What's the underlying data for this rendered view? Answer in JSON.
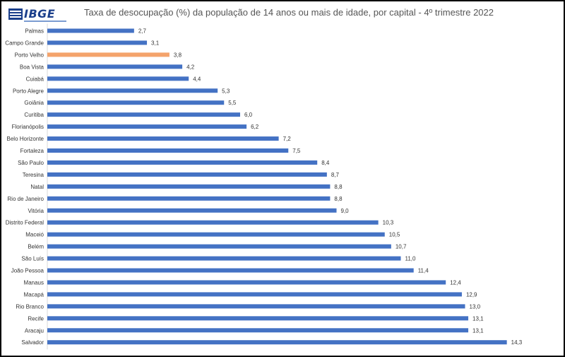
{
  "header": {
    "logo_text": "IBGE",
    "title": "Taxa de desocupação (%) da população de 14 anos ou mais de idade, por capital - 4º trimestre 2022"
  },
  "colors": {
    "bar": "#4472c4",
    "highlight": "#f4a36b"
  },
  "chart_data": {
    "type": "bar",
    "orientation": "horizontal",
    "title": "Taxa de desocupação (%) da população de 14 anos ou mais de idade, por capital - 4º trimestre 2022",
    "xlabel": "",
    "ylabel": "",
    "highlighted": "Porto Velho",
    "categories": [
      "Palmas",
      "Campo Grande",
      "Porto Velho",
      "Boa Vista",
      "Cuiabá",
      "Porto Alegre",
      "Goiânia",
      "Curitiba",
      "Florianópolis",
      "Belo Horizonte",
      "Fortaleza",
      "São Paulo",
      "Teresina",
      "Natal",
      "Rio de Janeiro",
      "Vitória",
      "Distrito Federal",
      "Maceió",
      "Belém",
      "São Luís",
      "João Pessoa",
      "Manaus",
      "Macapá",
      "Rio Branco",
      "Recife",
      "Aracaju",
      "Salvador"
    ],
    "values": [
      2.7,
      3.1,
      3.8,
      4.2,
      4.4,
      5.3,
      5.5,
      6.0,
      6.2,
      7.2,
      7.5,
      8.4,
      8.7,
      8.8,
      8.8,
      9.0,
      10.3,
      10.5,
      10.7,
      11.0,
      11.4,
      12.4,
      12.9,
      13.0,
      13.1,
      13.1,
      14.3
    ],
    "value_labels": [
      "2,7",
      "3,1",
      "3,8",
      "4,2",
      "4,4",
      "5,3",
      "5,5",
      "6,0",
      "6,2",
      "7,2",
      "7,5",
      "8,4",
      "8,7",
      "8,8",
      "8,8",
      "9,0",
      "10,3",
      "10,5",
      "10,7",
      "11,0",
      "11,4",
      "12,4",
      "12,9",
      "13,0",
      "13,1",
      "13,1",
      "14,3"
    ]
  }
}
